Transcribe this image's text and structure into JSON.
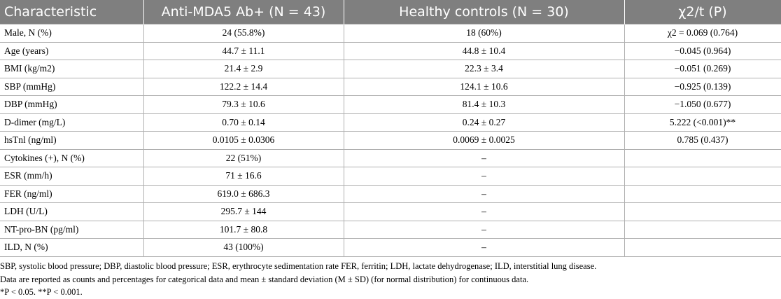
{
  "table": {
    "headers": [
      "Characteristic",
      "Anti-MDA5 Ab+ (N = 43)",
      "Healthy controls (N = 30)",
      "χ2/t (P)"
    ],
    "rows": [
      [
        "Male, N (%)",
        "24 (55.8%)",
        "18 (60%)",
        "χ2 = 0.069 (0.764)"
      ],
      [
        "Age (years)",
        "44.7 ± 11.1",
        "44.8 ± 10.4",
        "−0.045 (0.964)"
      ],
      [
        "BMI (kg/m2)",
        "21.4 ± 2.9",
        "22.3 ± 3.4",
        "−0.051 (0.269)"
      ],
      [
        "SBP (mmHg)",
        "122.2 ± 14.4",
        "124.1 ± 10.6",
        "−0.925 (0.139)"
      ],
      [
        "DBP (mmHg)",
        "79.3 ± 10.6",
        "81.4 ± 10.3",
        "−1.050 (0.677)"
      ],
      [
        "D-dimer (mg/L)",
        "0.70 ± 0.14",
        "0.24 ± 0.27",
        "5.222 (<0.001)**"
      ],
      [
        "hsTnl (ng/ml)",
        "0.0105 ± 0.0306",
        "0.0069 ± 0.0025",
        "0.785 (0.437)"
      ],
      [
        "Cytokines (+), N (%)",
        "22 (51%)",
        "–",
        ""
      ],
      [
        "ESR (mm/h)",
        "71 ± 16.6",
        "–",
        ""
      ],
      [
        "FER (ng/ml)",
        "619.0 ± 686.3",
        "–",
        ""
      ],
      [
        "LDH (U/L)",
        "295.7 ± 144",
        "–",
        ""
      ],
      [
        "NT-pro-BN (pg/ml)",
        "101.7 ± 80.8",
        "–",
        ""
      ],
      [
        "ILD, N (%)",
        "43 (100%)",
        "–",
        ""
      ]
    ]
  },
  "notes": [
    "SBP, systolic blood pressure; DBP, diastolic blood pressure; ESR, erythrocyte sedimentation rate FER, ferritin; LDH, lactate dehydrogenase; ILD, interstitial lung disease.",
    "Data are reported as counts and percentages for categorical data and mean ± standard deviation (M ± SD) (for normal distribution) for continuous data.",
    "*P < 0.05. **P < 0.001."
  ]
}
